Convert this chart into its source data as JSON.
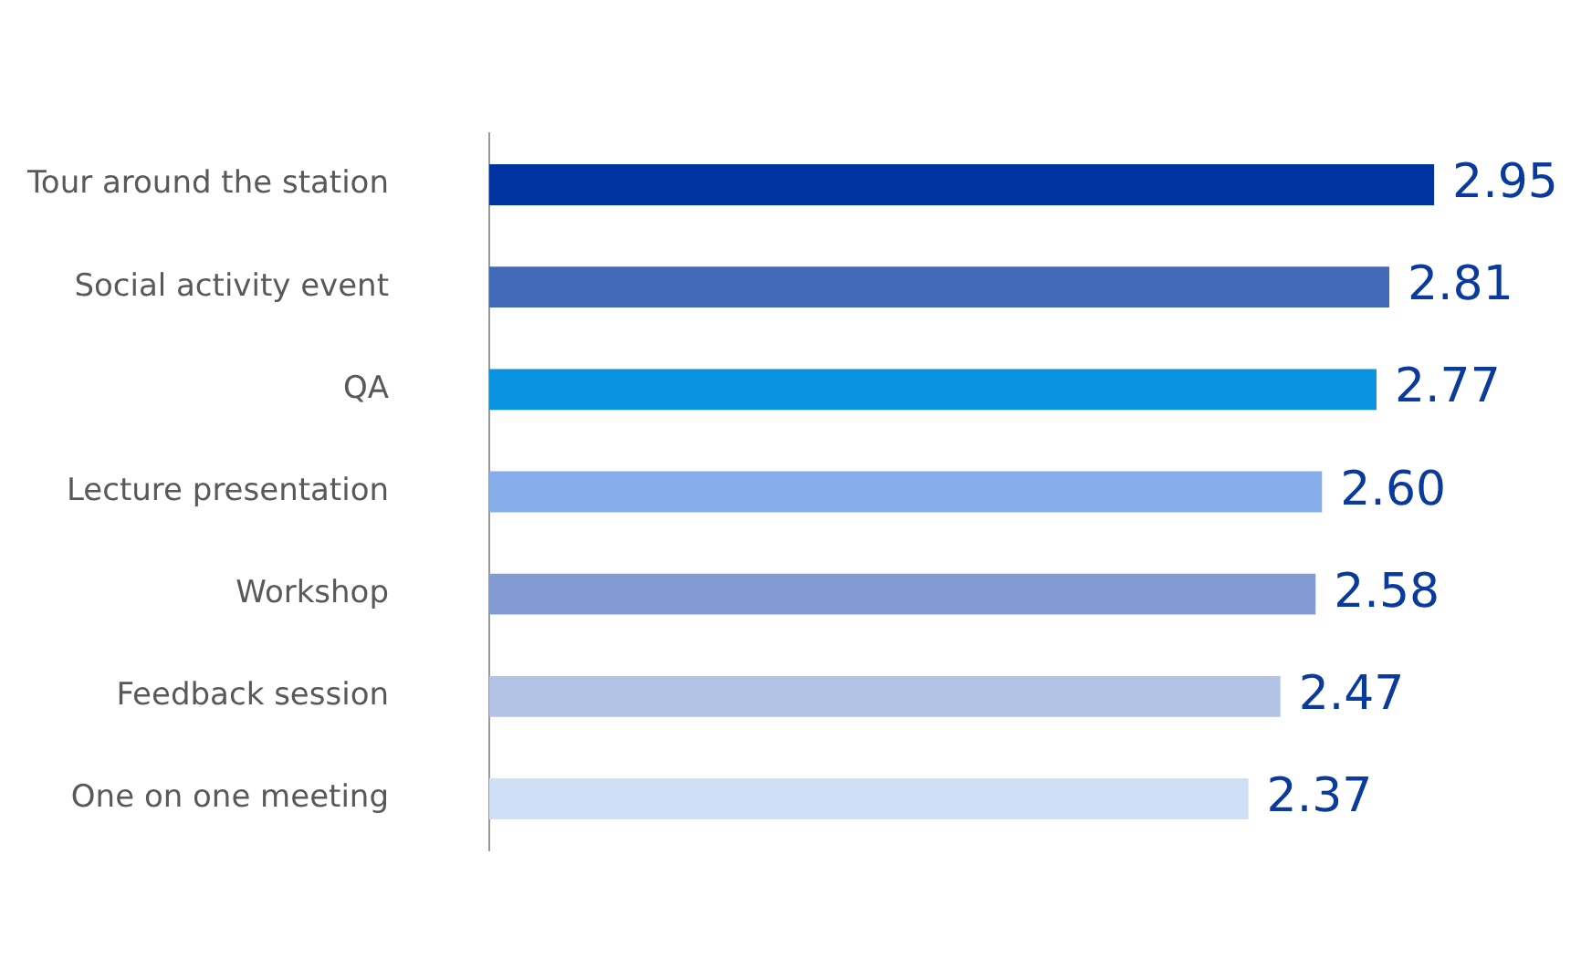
{
  "chart_data": {
    "type": "bar",
    "orientation": "horizontal",
    "categories": [
      "Tour around the station",
      "Social activity event",
      "QA",
      "Lecture presentation",
      "Workshop",
      "Feedback session",
      "One on one meeting"
    ],
    "values": [
      2.95,
      2.81,
      2.77,
      2.6,
      2.58,
      2.47,
      2.37
    ],
    "value_labels": [
      "2.95",
      "2.81",
      "2.77",
      "2.60",
      "2.58",
      "2.47",
      "2.37"
    ],
    "colors": [
      "#0033a0",
      "#4169b8",
      "#0a91e0",
      "#86aeea",
      "#829bd2",
      "#b3c3e5",
      "#cfdff6"
    ],
    "grid": false,
    "legend": false
  }
}
